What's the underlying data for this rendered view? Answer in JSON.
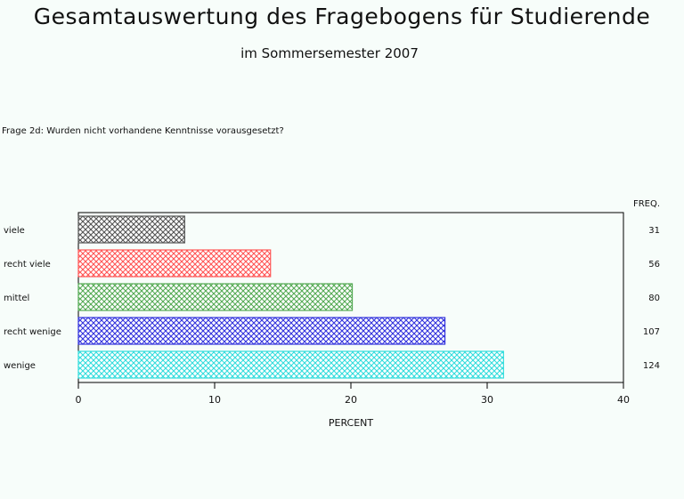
{
  "header": {
    "title": "Gesamtauswertung des Fragebogens für Studierende",
    "subtitle": "im Sommersemester 2007"
  },
  "question": "Frage 2d: Wurden nicht vorhandene Kenntnisse vorausgesetzt?",
  "chart_data": {
    "type": "bar",
    "orientation": "horizontal",
    "categories": [
      "viele",
      "recht viele",
      "mittel",
      "recht wenige",
      "wenige"
    ],
    "values": [
      7.8,
      14.1,
      20.1,
      26.9,
      31.2
    ],
    "freq_header": "FREQ.",
    "freq": [
      "31",
      "56",
      "80",
      "107",
      "124"
    ],
    "colors": [
      "#555555",
      "#ff5555",
      "#55aa55",
      "#3333dd",
      "#33dddd"
    ],
    "xlabel": "PERCENT",
    "xlim": [
      0,
      40
    ],
    "xticks": [
      0,
      10,
      20,
      30,
      40
    ],
    "grid": false
  }
}
